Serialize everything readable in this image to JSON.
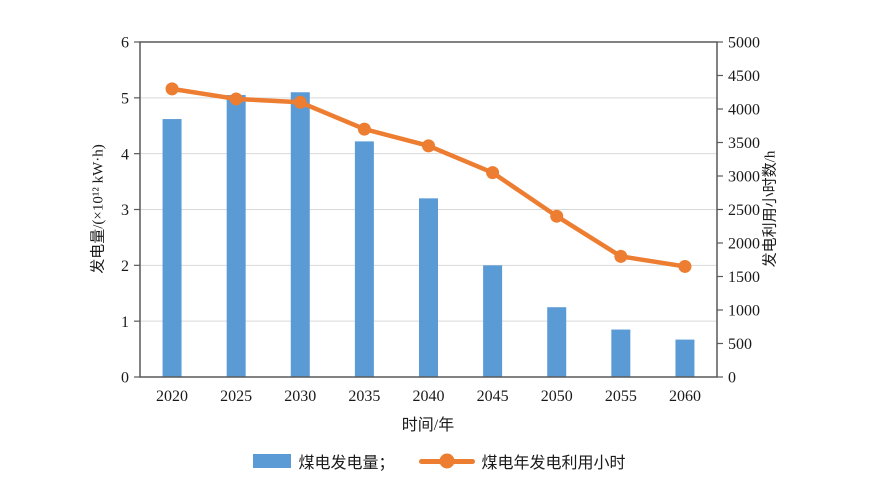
{
  "chart_data": {
    "type": "bar+line",
    "categories": [
      "2020",
      "2025",
      "2030",
      "2035",
      "2040",
      "2045",
      "2050",
      "2055",
      "2060"
    ],
    "series": [
      {
        "name": "煤电发电量",
        "type": "bar",
        "axis": "left",
        "color": "#5B9BD5",
        "values": [
          4.62,
          5.05,
          5.1,
          4.22,
          3.2,
          2.0,
          1.25,
          0.85,
          0.67
        ]
      },
      {
        "name": "煤电年发电利用小时",
        "type": "line",
        "axis": "right",
        "color": "#ED7D31",
        "values": [
          4300,
          4150,
          4100,
          3700,
          3450,
          3050,
          2400,
          1800,
          1650
        ]
      }
    ],
    "x_axis": {
      "label": "时间/年"
    },
    "y_axis_left": {
      "label": "发电量/(×10¹² kW·h)",
      "min": 0,
      "max": 6,
      "ticks": [
        0,
        1,
        2,
        3,
        4,
        5,
        6
      ]
    },
    "y_axis_right": {
      "label": "发电利用小时数/h",
      "min": 0,
      "max": 5000,
      "ticks": [
        0,
        500,
        1000,
        1500,
        2000,
        2500,
        3000,
        3500,
        4000,
        4500,
        5000
      ]
    },
    "grid": true,
    "legend_position": "bottom",
    "legend": {
      "items": [
        {
          "label": "煤电发电量；",
          "type": "bar",
          "color": "#5B9BD5"
        },
        {
          "label": "煤电年发电利用小时",
          "type": "line",
          "color": "#ED7D31"
        }
      ]
    }
  },
  "colors": {
    "bar": "#5B9BD5",
    "line": "#ED7D31",
    "axis": "#595959",
    "grid": "#d9d9d9",
    "text": "#1a1a1a",
    "background": "#ffffff"
  }
}
